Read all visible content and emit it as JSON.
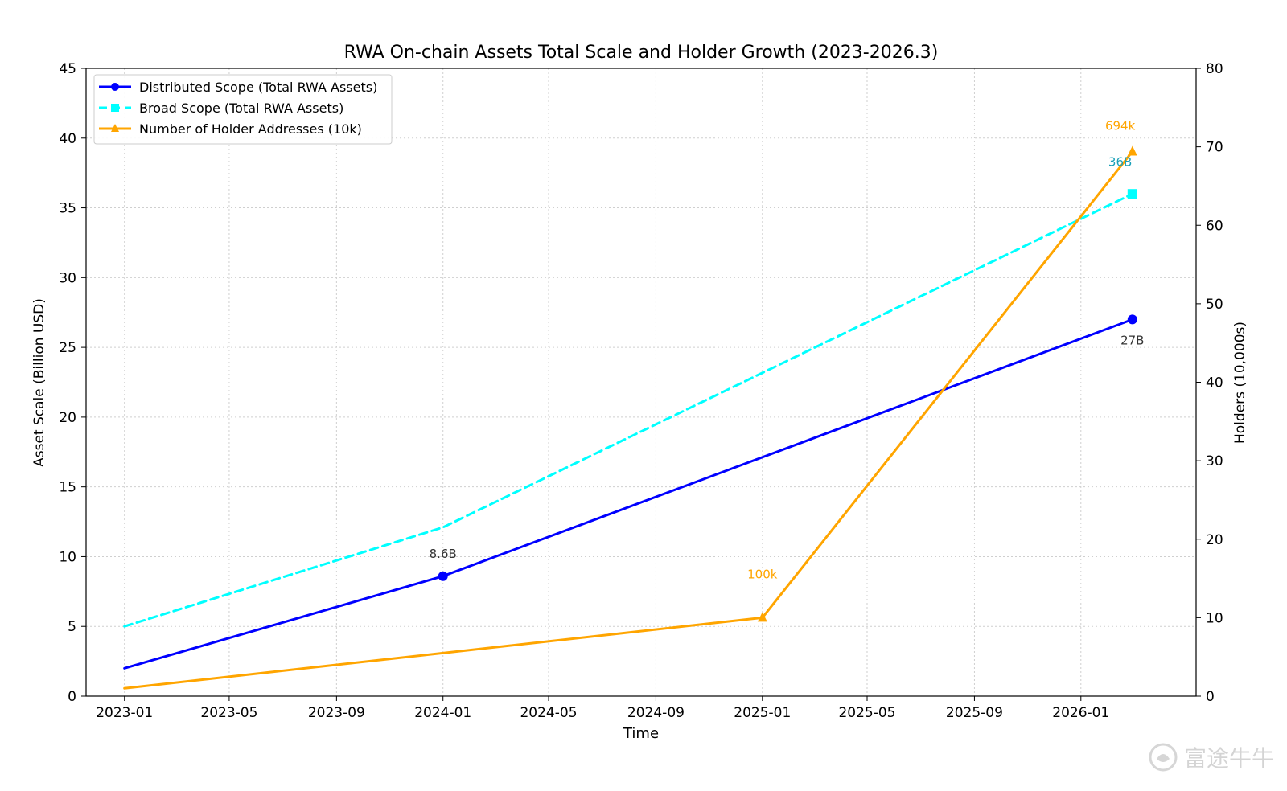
{
  "chart_data": {
    "type": "line",
    "title": "RWA On-chain Assets Total Scale and Holder Growth (2023-2026.3)",
    "xlabel": "Time",
    "ylabel": "Asset Scale (Billion USD)",
    "y2label": "Holders (10,000s)",
    "x_ticks": [
      "2023-01",
      "2023-05",
      "2023-09",
      "2024-01",
      "2024-05",
      "2024-09",
      "2025-01",
      "2025-05",
      "2025-09",
      "2026-01"
    ],
    "y_ticks": [
      "0",
      "5",
      "10",
      "15",
      "20",
      "25",
      "30",
      "35",
      "40",
      "45"
    ],
    "y2_ticks": [
      "0",
      "10",
      "20",
      "30",
      "40",
      "50",
      "60",
      "70",
      "80"
    ],
    "ylim": [
      0,
      45
    ],
    "y2lim": [
      0,
      80
    ],
    "xlim": [
      "2022-11-18",
      "2026-05-13"
    ],
    "grid": true,
    "legend_position": "upper-left",
    "series": [
      {
        "name": "Distributed Scope (Total RWA Assets)",
        "axis": "left",
        "color": "#0000ff",
        "style": "solid",
        "marker": "circle",
        "x": [
          "2023-01-01",
          "2024-01-01",
          "2026-03-01"
        ],
        "values": [
          2.0,
          8.6,
          27.0
        ],
        "marker_indices": [
          1,
          2
        ]
      },
      {
        "name": "Broad Scope (Total RWA Assets)",
        "axis": "left",
        "color": "#00ffff",
        "style": "dashed",
        "marker": "square",
        "x": [
          "2023-01-01",
          "2024-01-01",
          "2026-03-01"
        ],
        "values": [
          5.0,
          12.1,
          36.0
        ],
        "marker_indices": [
          2
        ]
      },
      {
        "name": "Number of Holder Addresses (10k)",
        "axis": "right",
        "color": "#ffa500",
        "style": "solid",
        "marker": "triangle",
        "x": [
          "2023-01-01",
          "2025-01-01",
          "2026-03-01"
        ],
        "values": [
          1.0,
          10.0,
          69.4
        ],
        "marker_indices": [
          1,
          2
        ]
      }
    ],
    "annotations": [
      {
        "text": "8.6B",
        "x": "2024-01-01",
        "y": 10.2,
        "axis": "left",
        "color": "#333333"
      },
      {
        "text": "27B",
        "x": "2026-03-01",
        "y": 25.5,
        "axis": "left",
        "color": "#333333"
      },
      {
        "text": "36B",
        "x": "2026-02-15",
        "y": 38.3,
        "axis": "left",
        "color": "#1aa0b8"
      },
      {
        "text": "100k",
        "x": "2025-01-01",
        "y": 15.5,
        "axis": "right",
        "color": "#ffa500"
      },
      {
        "text": "694k",
        "x": "2026-02-15",
        "y": 72.7,
        "axis": "right",
        "color": "#ffa500"
      }
    ]
  },
  "watermark": {
    "text": "富途牛牛"
  }
}
